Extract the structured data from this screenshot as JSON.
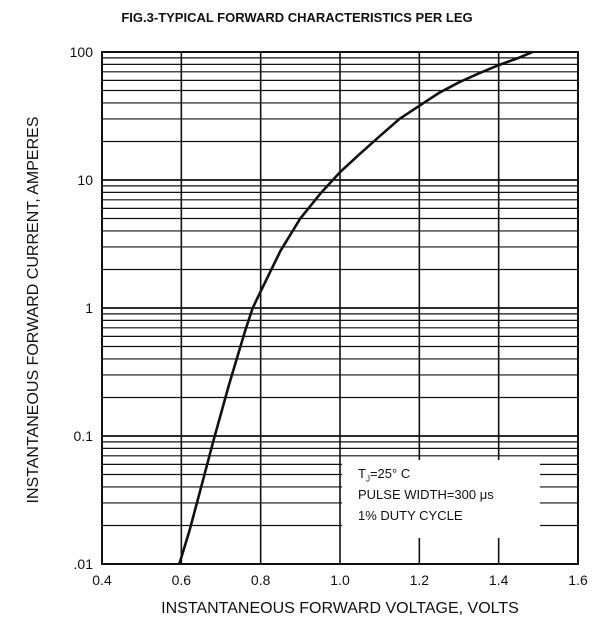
{
  "chart_data": {
    "type": "line",
    "title": "FIG.3-TYPICAL FORWARD CHARACTERISTICS PER LEG",
    "xlabel": "INSTANTANEOUS FORWARD VOLTAGE, VOLTS",
    "ylabel": "INSTANTANEOUS FORWARD CURRENT, AMPERES",
    "xlim": [
      0.4,
      1.6
    ],
    "ylim": [
      0.01,
      100
    ],
    "yscale": "log",
    "grid": true,
    "x_ticks": [
      "0.4",
      "0.6",
      "0.8",
      "1.0",
      "1.2",
      "1.4",
      "1.6"
    ],
    "y_ticks": [
      ".01",
      "0.1",
      "1",
      "10",
      "100"
    ],
    "series": [
      {
        "x": [
          0.595,
          0.62,
          0.65,
          0.68,
          0.72,
          0.76,
          0.78,
          0.8,
          0.85,
          0.9,
          0.95,
          1.0,
          1.05,
          1.1,
          1.15,
          1.2,
          1.25,
          1.3,
          1.35,
          1.4,
          1.45,
          1.485
        ],
        "y": [
          0.01,
          0.018,
          0.04,
          0.09,
          0.25,
          0.65,
          1.0,
          1.35,
          2.8,
          5.0,
          7.8,
          11.5,
          16.0,
          22.0,
          30.0,
          38.0,
          48.0,
          58.0,
          68.0,
          79.0,
          90.0,
          100.0
        ]
      }
    ],
    "annotations": {
      "tj_main": "T",
      "tj_sub": "J",
      "tj_rest": "=25° C",
      "pulse": "PULSE WIDTH=300 μs",
      "duty": "1% DUTY CYCLE"
    }
  }
}
